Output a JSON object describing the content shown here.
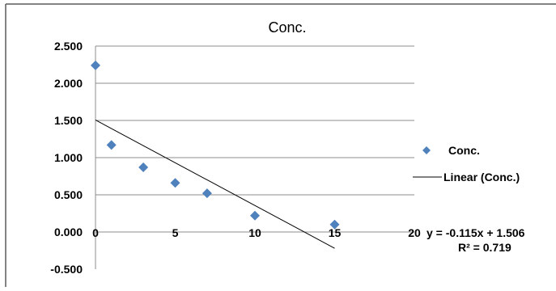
{
  "chart_data": {
    "type": "scatter",
    "title": "Conc.",
    "xlabel": "",
    "ylabel": "",
    "xlim": [
      0,
      20
    ],
    "ylim": [
      -0.5,
      2.5
    ],
    "x_ticks": [
      0,
      5,
      10,
      15,
      20
    ],
    "y_ticks": [
      2.5,
      2.0,
      1.5,
      1.0,
      0.5,
      0.0,
      -0.5
    ],
    "x_tick_labels": [
      "0",
      "5",
      "10",
      "15",
      "20"
    ],
    "y_tick_labels": [
      "2.500",
      "2.000",
      "1.500",
      "1.000",
      "0.500",
      "0.000",
      "-0.500"
    ],
    "grid": "horizontal",
    "series": [
      {
        "name": "Conc.",
        "marker": "diamond",
        "color": "#4F81BD",
        "points": [
          {
            "x": 0,
            "y": 2.24
          },
          {
            "x": 1,
            "y": 1.17
          },
          {
            "x": 3,
            "y": 0.87
          },
          {
            "x": 5,
            "y": 0.66
          },
          {
            "x": 7,
            "y": 0.52
          },
          {
            "x": 10,
            "y": 0.22
          },
          {
            "x": 15,
            "y": 0.1
          }
        ]
      }
    ],
    "trendline": {
      "name": "Linear (Conc.)",
      "slope": -0.115,
      "intercept": 1.506,
      "x_range": [
        0,
        15
      ],
      "equation": "y = -0.115x + 1.506",
      "r2": "R² = 0.719",
      "color": "#000000"
    },
    "legend": {
      "position": "right",
      "items": [
        "Conc.",
        "Linear (Conc.)"
      ]
    }
  }
}
